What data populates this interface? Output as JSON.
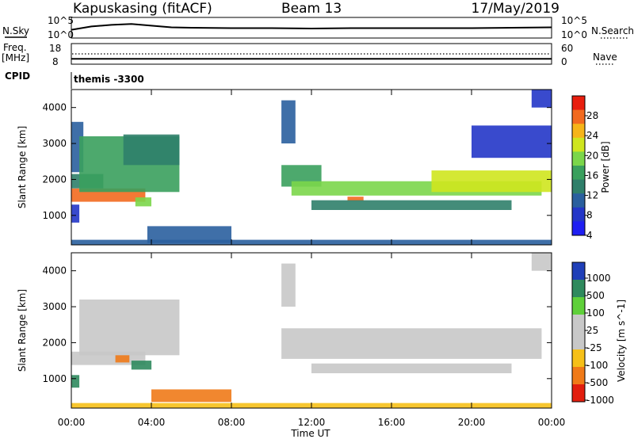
{
  "header": {
    "site": "Kapuskasing (fitACF)",
    "beam": "Beam 13",
    "date": "17/May/2019"
  },
  "noise_panel": {
    "left_label": "N.Sky",
    "right_label": "N.Search",
    "left_ticks": [
      "10^5",
      "10^0"
    ],
    "right_ticks": [
      "10^5",
      "10^0"
    ]
  },
  "freq_panel": {
    "left_label_1": "Freq.",
    "left_label_2": "[MHz]",
    "right_label": "Nave",
    "left_ticks": [
      "18",
      "8"
    ],
    "right_ticks": [
      "60",
      "0"
    ]
  },
  "cpid_panel": {
    "label": "CPID",
    "value": "themis -3300"
  },
  "power_panel": {
    "ylabel": "Slant Range [km]",
    "cbar_label": "Power [dB]",
    "cbar_ticks": [
      "28",
      "24",
      "20",
      "16",
      "12",
      "8",
      "4"
    ],
    "cbar_colors": [
      "#e81e0e",
      "#f26a1f",
      "#f6b418",
      "#cfe51e",
      "#7bd64a",
      "#3aa05d",
      "#2f7f6a",
      "#2a5f9e",
      "#2436c8",
      "#1f1ff2"
    ]
  },
  "velocity_panel": {
    "ylabel": "Slant Range [km]",
    "cbar_label": "Velocity [m s^-1]",
    "cbar_ticks": [
      "1000",
      "500",
      "100",
      "25",
      "-25",
      "-100",
      "-500",
      "-1000"
    ],
    "cbar_colors": [
      "#1f3fb8",
      "#2f8a5e",
      "#5fd03a",
      "#c8c8c8",
      "#c8c8c8",
      "#f6c018",
      "#f07a18",
      "#e21e0e"
    ]
  },
  "xaxis": {
    "label": "Time UT",
    "ticks": [
      "00:00",
      "04:00",
      "08:00",
      "12:00",
      "16:00",
      "20:00",
      "00:00"
    ]
  },
  "chart_data": [
    {
      "type": "line",
      "name": "noise",
      "x": [
        0,
        1,
        2,
        3,
        4,
        5,
        6,
        8,
        10,
        12,
        14,
        16,
        18,
        20,
        22,
        24
      ],
      "y": [
        2.0,
        2.8,
        3.2,
        3.4,
        3.0,
        2.6,
        2.5,
        2.4,
        2.4,
        2.3,
        2.4,
        2.4,
        2.4,
        2.4,
        2.5,
        2.6
      ],
      "xlim": [
        0,
        24
      ],
      "ylim": [
        0,
        5
      ]
    },
    {
      "type": "line",
      "name": "frequency",
      "x": [
        0,
        12,
        24
      ],
      "y": [
        10.6,
        10.6,
        10.6
      ],
      "xlim": [
        0,
        24
      ],
      "ylim": [
        8,
        18
      ]
    },
    {
      "type": "heatmap",
      "name": "power",
      "xlim": [
        0,
        24
      ],
      "ylim": [
        180,
        4500
      ],
      "clim": [
        0,
        30
      ],
      "regions": [
        {
          "t0": 0.0,
          "t1": 3.7,
          "r0": 1380,
          "r1": 1750,
          "value": 26
        },
        {
          "t0": 0.0,
          "t1": 1.6,
          "r0": 1750,
          "r1": 2150,
          "value": 10
        },
        {
          "t0": 0.0,
          "t1": 0.6,
          "r0": 2200,
          "r1": 3600,
          "value": 6
        },
        {
          "t0": 0.4,
          "t1": 5.4,
          "r0": 1650,
          "r1": 3200,
          "value": 14
        },
        {
          "t0": 2.6,
          "t1": 5.4,
          "r0": 2400,
          "r1": 3250,
          "value": 10
        },
        {
          "t0": 3.2,
          "t1": 4.0,
          "r0": 1250,
          "r1": 1500,
          "value": 16
        },
        {
          "t0": 0.0,
          "t1": 0.4,
          "r0": 800,
          "r1": 1300,
          "value": 4
        },
        {
          "t0": 3.8,
          "t1": 8.0,
          "r0": 230,
          "r1": 700,
          "value": 7
        },
        {
          "t0": 0.0,
          "t1": 24.0,
          "r0": 190,
          "r1": 320,
          "value": 8
        },
        {
          "t0": 10.5,
          "t1": 12.5,
          "r0": 1800,
          "r1": 2400,
          "value": 12
        },
        {
          "t0": 11.0,
          "t1": 23.5,
          "r0": 1550,
          "r1": 1950,
          "value": 16
        },
        {
          "t0": 13.8,
          "t1": 14.6,
          "r0": 1400,
          "r1": 1520,
          "value": 26
        },
        {
          "t0": 12.0,
          "t1": 22.0,
          "r0": 1150,
          "r1": 1420,
          "value": 10
        },
        {
          "t0": 18.0,
          "t1": 24.0,
          "r0": 1650,
          "r1": 2250,
          "value": 20
        },
        {
          "t0": 10.5,
          "t1": 11.2,
          "r0": 3000,
          "r1": 4200,
          "value": 6
        },
        {
          "t0": 20.0,
          "t1": 24.0,
          "r0": 2600,
          "r1": 3500,
          "value": 5
        },
        {
          "t0": 23.0,
          "t1": 24.0,
          "r0": 4000,
          "r1": 4500,
          "value": 4
        }
      ]
    },
    {
      "type": "heatmap",
      "name": "velocity",
      "xlim": [
        0,
        24
      ],
      "ylim": [
        180,
        4500
      ],
      "clim": [
        -1000,
        1000
      ],
      "regions": [
        {
          "t0": 0.0,
          "t1": 3.7,
          "r0": 1380,
          "r1": 1750,
          "value": 0
        },
        {
          "t0": 0.4,
          "t1": 5.4,
          "r0": 1650,
          "r1": 3200,
          "value": 0
        },
        {
          "t0": 2.2,
          "t1": 2.9,
          "r0": 1450,
          "r1": 1650,
          "value": -400
        },
        {
          "t0": 3.0,
          "t1": 4.0,
          "r0": 1250,
          "r1": 1500,
          "value": 150
        },
        {
          "t0": 0.0,
          "t1": 0.4,
          "r0": 750,
          "r1": 1100,
          "value": 150
        },
        {
          "t0": 4.0,
          "t1": 8.0,
          "r0": 350,
          "r1": 700,
          "value": -250
        },
        {
          "t0": 0.0,
          "t1": 24.0,
          "r0": 190,
          "r1": 320,
          "value": -60
        },
        {
          "t0": 10.5,
          "t1": 23.5,
          "r0": 1550,
          "r1": 2400,
          "value": 0
        },
        {
          "t0": 12.0,
          "t1": 22.0,
          "r0": 1150,
          "r1": 1420,
          "value": 0
        },
        {
          "t0": 10.5,
          "t1": 11.2,
          "r0": 3000,
          "r1": 4200,
          "value": 0
        },
        {
          "t0": 23.0,
          "t1": 24.0,
          "r0": 4000,
          "r1": 4500,
          "value": 0
        }
      ]
    }
  ]
}
